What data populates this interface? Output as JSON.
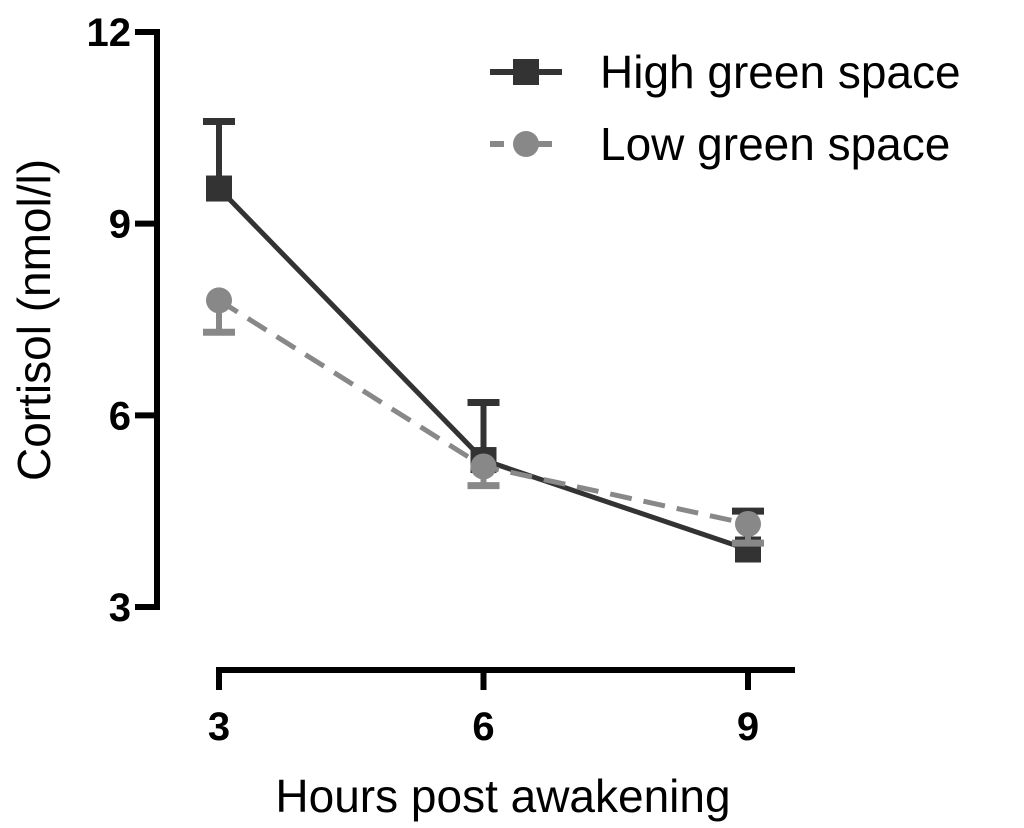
{
  "chart_data": {
    "type": "line",
    "x": [
      3,
      6,
      9
    ],
    "xlabel": "Hours post awakening",
    "ylabel": "Cortisol (nmol/l)",
    "xticks": [
      "3",
      "6",
      "9"
    ],
    "yticks": [
      "3",
      "6",
      "9",
      "12"
    ],
    "ylim": [
      3,
      12
    ],
    "grid": false,
    "legend_position": "top-right",
    "series": [
      {
        "name": "High green space",
        "values": [
          9.55,
          5.3,
          3.9
        ],
        "error_upper": [
          10.6,
          6.2,
          4.5
        ],
        "color": "#333333",
        "line_style": "solid",
        "marker": "square"
      },
      {
        "name": "Low green space",
        "values": [
          7.8,
          5.2,
          4.3
        ],
        "error_lower": [
          7.3,
          4.9,
          4.0
        ],
        "color": "#888888",
        "line_style": "dashed",
        "marker": "circle"
      }
    ]
  }
}
